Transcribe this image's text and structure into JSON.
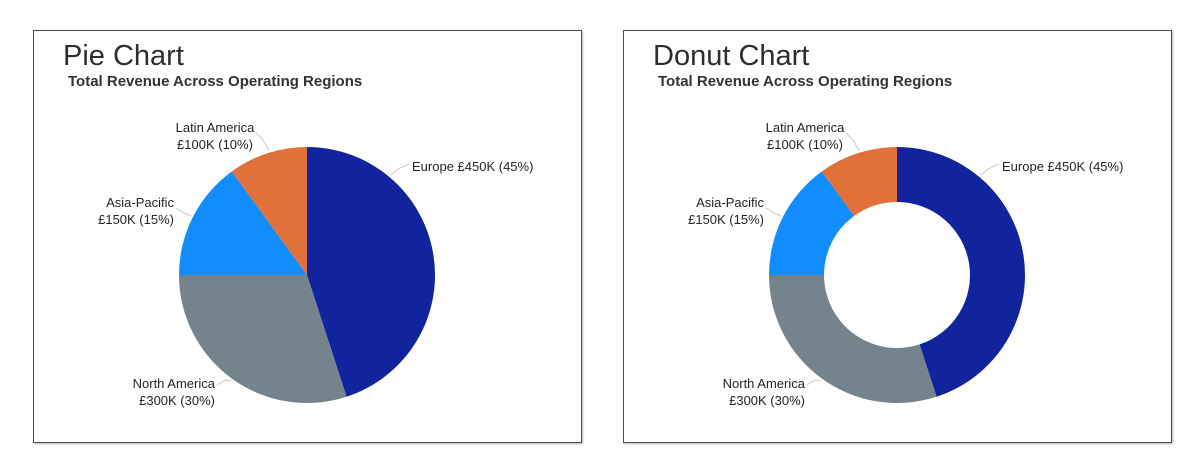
{
  "page": {
    "background": "#ffffff"
  },
  "chart_data": [
    {
      "type": "pie",
      "title": "Pie Chart",
      "subtitle": "Total Revenue Across Operating Regions",
      "direction": "clockwise",
      "start_angle_deg": 0,
      "inner_radius_ratio": 0,
      "legend": "none",
      "slices": [
        {
          "name": "Europe",
          "value_k_gbp": 450,
          "percent": 45,
          "color": "#12239E",
          "label_lines": [
            "Europe £450K (45%)"
          ]
        },
        {
          "name": "North America",
          "value_k_gbp": 300,
          "percent": 30,
          "color": "#75838D",
          "label_lines": [
            "North America",
            "£300K (30%)"
          ]
        },
        {
          "name": "Asia-Pacific",
          "value_k_gbp": 150,
          "percent": 15,
          "color": "#118DFF",
          "label_lines": [
            "Asia-Pacific",
            "£150K (15%)"
          ]
        },
        {
          "name": "Latin America",
          "value_k_gbp": 100,
          "percent": 10,
          "color": "#E2703A",
          "label_lines": [
            "Latin America",
            "£100K (10%)"
          ]
        }
      ]
    },
    {
      "type": "donut",
      "title": "Donut Chart",
      "subtitle": "Total Revenue Across Operating Regions",
      "direction": "clockwise",
      "start_angle_deg": 0,
      "inner_radius_ratio": 0.57,
      "legend": "none",
      "slices": [
        {
          "name": "Europe",
          "value_k_gbp": 450,
          "percent": 45,
          "color": "#12239E",
          "label_lines": [
            "Europe £450K (45%)"
          ]
        },
        {
          "name": "North America",
          "value_k_gbp": 300,
          "percent": 30,
          "color": "#75838D",
          "label_lines": [
            "North America",
            "£300K (30%)"
          ]
        },
        {
          "name": "Asia-Pacific",
          "value_k_gbp": 150,
          "percent": 15,
          "color": "#118DFF",
          "label_lines": [
            "Asia-Pacific",
            "£150K (15%)"
          ]
        },
        {
          "name": "Latin America",
          "value_k_gbp": 100,
          "percent": 10,
          "color": "#E2703A",
          "label_lines": [
            "Latin America",
            "£100K (10%)"
          ]
        }
      ]
    }
  ],
  "style": {
    "leader_line_color": "#C9C9C9",
    "label_text_color": "#252423",
    "title_text_color": "#2e2e2e"
  }
}
